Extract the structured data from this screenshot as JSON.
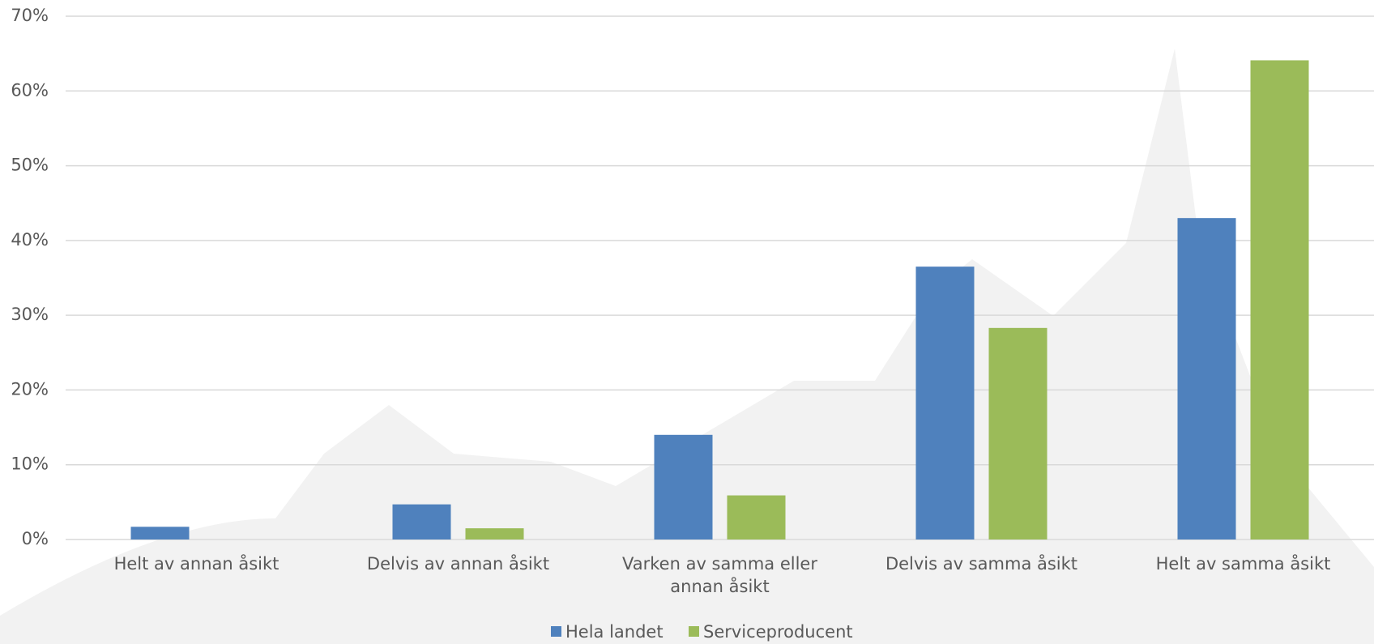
{
  "chart_data": {
    "type": "bar",
    "categories": [
      "Helt av annan åsikt",
      "Delvis av annan åsikt",
      "Varken av samma eller annan åsikt",
      "Delvis av samma åsikt",
      "Helt av samma åsikt"
    ],
    "series": [
      {
        "name": "Hela landet",
        "color": "#4f81bd",
        "values": [
          1.7,
          4.7,
          14.0,
          36.5,
          43.0
        ]
      },
      {
        "name": "Serviceproducent",
        "color": "#9bbb59",
        "values": [
          0,
          1.5,
          5.9,
          28.3,
          64.1
        ]
      }
    ],
    "ylim": [
      0,
      70
    ],
    "yticks": [
      {
        "value": 0,
        "label": "0%"
      },
      {
        "value": 10,
        "label": "10%"
      },
      {
        "value": 20,
        "label": "20%"
      },
      {
        "value": 30,
        "label": "30%"
      },
      {
        "value": 40,
        "label": "40%"
      },
      {
        "value": 50,
        "label": "50%"
      },
      {
        "value": 60,
        "label": "60%"
      },
      {
        "value": 70,
        "label": "70%"
      }
    ],
    "grid": true,
    "legend": "bottom"
  }
}
